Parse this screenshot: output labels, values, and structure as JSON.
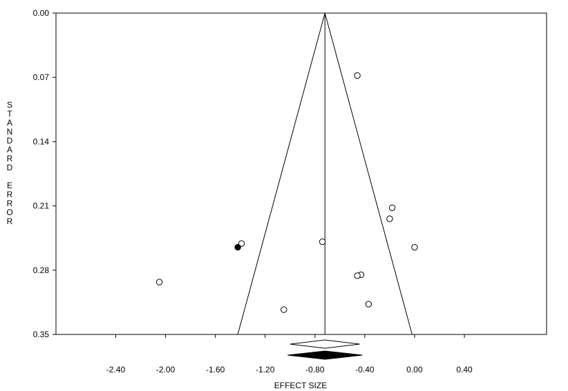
{
  "chart_data": {
    "type": "scatter",
    "subtype": "funnel-plot",
    "title": "",
    "xlabel": "EFFECT SIZE",
    "ylabel": "STANDARD ERROR",
    "xlim": [
      -2.88,
      1.06
    ],
    "ylim": [
      0.0,
      0.35
    ],
    "y_reversed": true,
    "xticks": [
      -2.4,
      -2.0,
      -1.6,
      -1.2,
      -0.8,
      -0.4,
      0.0,
      0.4
    ],
    "xtick_labels": [
      "-2.40",
      "-2.00",
      "-1.60",
      "-1.20",
      "-0.80",
      "-0.40",
      "0.00",
      "0.40"
    ],
    "yticks": [
      0.0,
      0.07,
      0.14,
      0.21,
      0.28,
      0.35
    ],
    "ytick_labels": [
      "0.00",
      "0.07",
      "0.14",
      "0.21",
      "0.28",
      "0.35"
    ],
    "grid": false,
    "funnel": {
      "center": -0.72,
      "apex_se": 0.0,
      "base_se": 0.35,
      "base_left": -1.42,
      "base_right": -0.02
    },
    "series": [
      {
        "marker": "open-circle",
        "points": [
          {
            "x": -0.46,
            "y": 0.068
          },
          {
            "x": -0.18,
            "y": 0.212
          },
          {
            "x": -0.2,
            "y": 0.224
          },
          {
            "x": -1.39,
            "y": 0.251
          },
          {
            "x": -0.74,
            "y": 0.249
          },
          {
            "x": 0.0,
            "y": 0.255
          },
          {
            "x": -0.43,
            "y": 0.285
          },
          {
            "x": -0.46,
            "y": 0.286
          },
          {
            "x": -2.05,
            "y": 0.293
          },
          {
            "x": -0.37,
            "y": 0.317
          },
          {
            "x": -1.05,
            "y": 0.323
          }
        ]
      },
      {
        "marker": "filled-circle",
        "points": [
          {
            "x": -1.42,
            "y": 0.255
          }
        ]
      }
    ],
    "summary_diamonds": [
      {
        "style": "open",
        "lower": -1.0,
        "center": -0.72,
        "upper": -0.44
      },
      {
        "style": "filled",
        "lower": -1.02,
        "center": -0.72,
        "upper": -0.42
      }
    ]
  }
}
